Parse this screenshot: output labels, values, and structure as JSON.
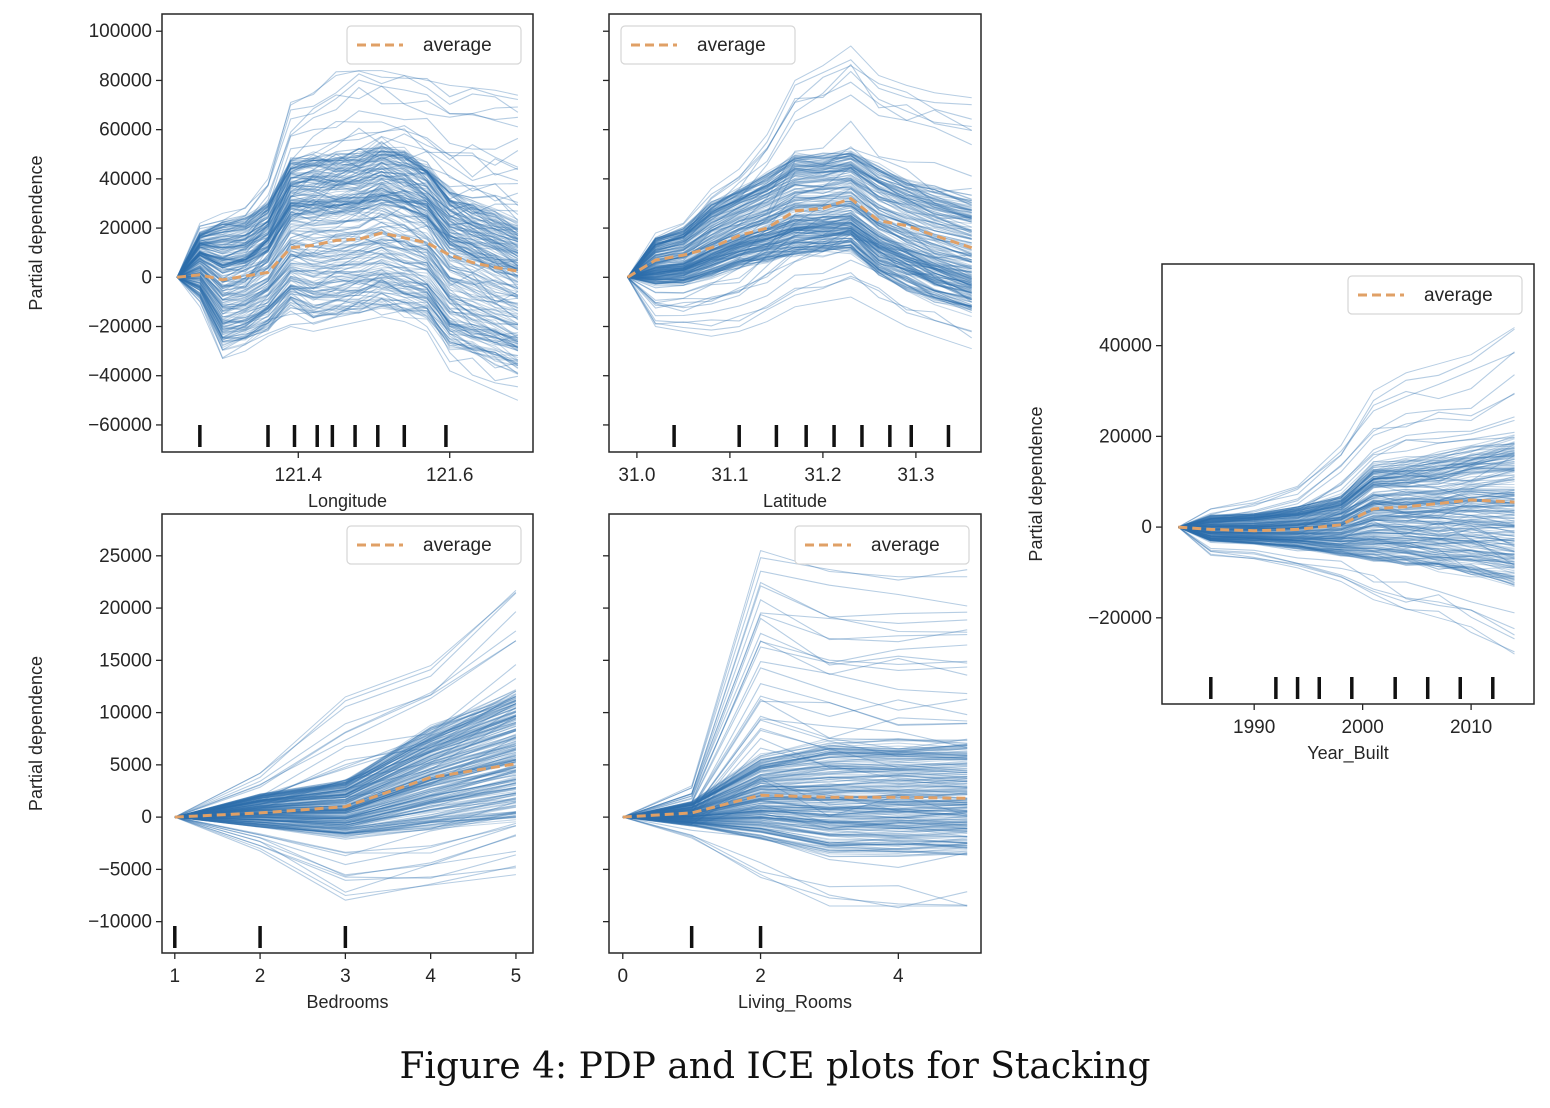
{
  "figure": {
    "caption": "Figure 4: PDP and ICE plots for Stacking"
  },
  "colors": {
    "ice": "#2f6fae",
    "average": "#e0a066",
    "axis": "#262626",
    "rug": "#111111"
  },
  "legend_label": "average",
  "chart_data": [
    {
      "type": "line",
      "xlabel": "Longitude",
      "ylabel": "Partial dependence",
      "xlim": [
        121.22,
        121.71
      ],
      "ylim": [
        -71000,
        107000
      ],
      "xticks": [
        121.4,
        121.6
      ],
      "xtick_labels": [
        "121.4",
        "121.6"
      ],
      "yticks": [
        100000,
        80000,
        60000,
        40000,
        20000,
        0,
        -20000,
        -40000,
        -60000
      ],
      "ytick_labels": [
        "100000",
        "80000",
        "60000",
        "40000",
        "20000",
        "0",
        "−20000",
        "−40000",
        "−60000"
      ],
      "legend": "top-right",
      "rug": [
        121.27,
        121.36,
        121.395,
        121.425,
        121.445,
        121.475,
        121.505,
        121.54,
        121.595
      ],
      "series": [
        {
          "values_x": [
            121.24,
            121.27,
            121.3,
            121.33,
            121.36,
            121.39,
            121.42,
            121.45,
            121.48,
            121.51,
            121.54,
            121.57,
            121.6,
            121.63,
            121.66,
            121.69
          ],
          "average": [
            0,
            1000,
            -1000,
            500,
            2000,
            12000,
            13000,
            15000,
            15500,
            18000,
            16000,
            14000,
            9000,
            6000,
            4000,
            2500
          ],
          "upper": [
            0,
            18000,
            22000,
            24000,
            30000,
            48000,
            50000,
            50000,
            51000,
            55000,
            52000,
            46000,
            35000,
            30000,
            26000,
            22000
          ],
          "lower": [
            0,
            -8000,
            -28000,
            -26000,
            -21000,
            -12000,
            -16000,
            -15000,
            -13000,
            -11000,
            -14000,
            -16000,
            -28000,
            -31000,
            -34000,
            -38000
          ],
          "env_max": [
            0,
            22000,
            26000,
            28000,
            40000,
            70000,
            75000,
            82000,
            84000,
            84000,
            82000,
            80000,
            78000,
            77000,
            76000,
            74000
          ],
          "env_min": [
            0,
            -12000,
            -33000,
            -30000,
            -24000,
            -20000,
            -22000,
            -20000,
            -18000,
            -16000,
            -18000,
            -22000,
            -38000,
            -42000,
            -46000,
            -50000
          ]
        }
      ]
    },
    {
      "type": "line",
      "xlabel": "Latitude",
      "ylabel": "",
      "xlim": [
        30.97,
        31.37
      ],
      "ylim": [
        -71000,
        107000
      ],
      "xticks": [
        31.0,
        31.1,
        31.2,
        31.3
      ],
      "xtick_labels": [
        "31.0",
        "31.1",
        "31.2",
        "31.3"
      ],
      "yticks": [
        100000,
        80000,
        60000,
        40000,
        20000,
        0,
        -20000,
        -40000,
        -60000
      ],
      "ytick_labels": [],
      "legend": "top-left",
      "rug": [
        31.04,
        31.11,
        31.15,
        31.182,
        31.212,
        31.242,
        31.272,
        31.295,
        31.335
      ],
      "series": [
        {
          "values_x": [
            30.99,
            31.02,
            31.05,
            31.08,
            31.11,
            31.14,
            31.17,
            31.2,
            31.23,
            31.26,
            31.29,
            31.32,
            31.36
          ],
          "average": [
            0,
            7000,
            9000,
            12000,
            17000,
            20000,
            27000,
            28000,
            32000,
            23000,
            21000,
            17000,
            12000
          ],
          "upper": [
            0,
            16000,
            20000,
            30000,
            36000,
            42000,
            50000,
            50000,
            52000,
            45000,
            40000,
            36000,
            32000
          ],
          "lower": [
            0,
            -3000,
            -3000,
            0,
            4000,
            6000,
            8000,
            9000,
            10000,
            0,
            -5000,
            -10000,
            -15000
          ],
          "env_max": [
            0,
            18000,
            22000,
            36000,
            44000,
            58000,
            80000,
            86000,
            94000,
            82000,
            78000,
            75000,
            73000
          ],
          "env_min": [
            0,
            -20000,
            -22000,
            -24000,
            -22000,
            -18000,
            -12000,
            -10000,
            -8000,
            -14000,
            -20000,
            -24000,
            -29000
          ]
        }
      ]
    },
    {
      "type": "line",
      "xlabel": "Bedrooms",
      "ylabel": "Partial dependence",
      "xlim": [
        0.85,
        5.2
      ],
      "ylim": [
        -13000,
        29000
      ],
      "xticks": [
        1,
        2,
        3,
        4,
        5
      ],
      "xtick_labels": [
        "1",
        "2",
        "3",
        "4",
        "5"
      ],
      "yticks": [
        25000,
        20000,
        15000,
        10000,
        5000,
        0,
        -5000,
        -10000
      ],
      "ytick_labels": [
        "25000",
        "20000",
        "15000",
        "10000",
        "5000",
        "0",
        "−5000",
        "−10000"
      ],
      "legend": "top-right",
      "rug": [
        1,
        2,
        3
      ],
      "series": [
        {
          "values_x": [
            1,
            2,
            3,
            4,
            5
          ],
          "average": [
            0,
            400,
            1000,
            3800,
            5100
          ],
          "upper": [
            0,
            2200,
            3500,
            8500,
            12000
          ],
          "lower": [
            0,
            -900,
            -1800,
            -1000,
            0
          ],
          "env_max": [
            0,
            4200,
            11500,
            14500,
            21500
          ],
          "env_min": [
            0,
            -3000,
            -7500,
            -6500,
            -5500
          ]
        }
      ]
    },
    {
      "type": "line",
      "xlabel": "Living_Rooms",
      "ylabel": "",
      "xlim": [
        -0.2,
        5.2
      ],
      "ylim": [
        -13000,
        29000
      ],
      "xticks": [
        0,
        2,
        4
      ],
      "xtick_labels": [
        "0",
        "2",
        "4"
      ],
      "yticks": [
        25000,
        20000,
        15000,
        10000,
        5000,
        0,
        -5000,
        -10000
      ],
      "ytick_labels": [],
      "legend": "top-right",
      "rug": [
        1,
        2
      ],
      "series": [
        {
          "values_x": [
            0,
            1,
            2,
            3,
            4,
            5
          ],
          "average": [
            0,
            400,
            2100,
            1900,
            1900,
            1800
          ],
          "upper": [
            0,
            1500,
            6000,
            7500,
            7500,
            7500
          ],
          "lower": [
            0,
            -800,
            -2000,
            -3500,
            -3500,
            -3500
          ],
          "env_max": [
            0,
            3000,
            25500,
            23500,
            23000,
            23000
          ],
          "env_min": [
            0,
            -2000,
            -5500,
            -8500,
            -8500,
            -8500
          ]
        }
      ]
    },
    {
      "type": "line",
      "xlabel": "Year_Built",
      "ylabel": "Partial dependence",
      "xlim": [
        1981.5,
        2015.8
      ],
      "ylim": [
        -39000,
        58000
      ],
      "xticks": [
        1990,
        2000,
        2010
      ],
      "xtick_labels": [
        "1990",
        "2000",
        "2010"
      ],
      "yticks": [
        40000,
        20000,
        0,
        -20000
      ],
      "ytick_labels": [
        "40000",
        "20000",
        "0",
        "−20000"
      ],
      "legend": "top-right",
      "rug": [
        1986,
        1992,
        1994,
        1996,
        1999,
        2003,
        2006,
        2009,
        2012
      ],
      "series": [
        {
          "values_x": [
            1983,
            1986,
            1990,
            1994,
            1998,
            2001,
            2004,
            2007,
            2010,
            2014
          ],
          "average": [
            0,
            -500,
            -800,
            -500,
            500,
            4000,
            4500,
            5200,
            6000,
            5500
          ],
          "upper": [
            0,
            2500,
            3000,
            4500,
            7000,
            14000,
            15000,
            16000,
            18000,
            20000
          ],
          "lower": [
            0,
            -3000,
            -3500,
            -4500,
            -6000,
            -7000,
            -8000,
            -9000,
            -10000,
            -12000
          ],
          "env_max": [
            0,
            4000,
            6000,
            9000,
            18000,
            30000,
            34000,
            36000,
            38000,
            44000
          ],
          "env_min": [
            0,
            -6000,
            -7000,
            -9000,
            -12000,
            -16000,
            -18000,
            -20000,
            -22000,
            -28000
          ]
        }
      ]
    }
  ]
}
